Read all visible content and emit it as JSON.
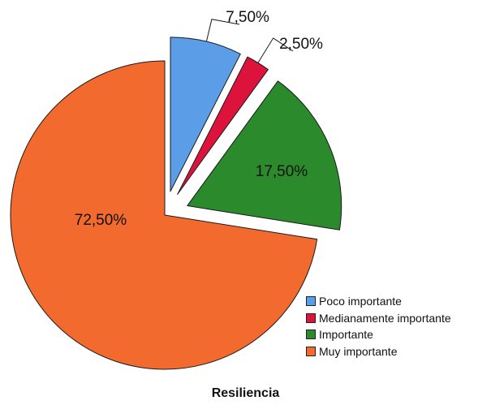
{
  "chart_data": {
    "type": "pie",
    "title": "Resiliencia",
    "categories": [
      "Poco importante",
      "Medianamente importante",
      "Importante",
      "Muy importante"
    ],
    "values": [
      7.5,
      2.5,
      17.5,
      72.5
    ],
    "data_labels": [
      "7,50%",
      "2,50%",
      "17,50%",
      "72,50%"
    ],
    "colors": [
      "#5b9de6",
      "#dc143c",
      "#2b8a2b",
      "#f26a2e"
    ],
    "exploded": [
      true,
      true,
      true,
      false
    ],
    "start_angle_deg": 0,
    "direction": "clockwise",
    "legend_position": "bottom-right"
  }
}
